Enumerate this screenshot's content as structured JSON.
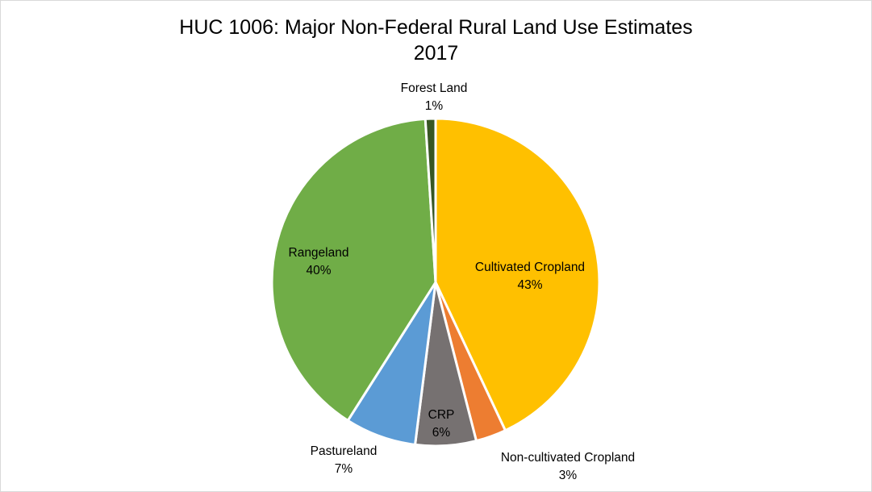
{
  "chart_data": {
    "type": "pie",
    "title": "HUC 1006: Major Non-Federal Rural Land Use Estimates",
    "subtitle": "2017",
    "slices": [
      {
        "name": "Cultivated Cropland",
        "value": 43,
        "label": "43%",
        "color": "#FFC000"
      },
      {
        "name": "Non-cultivated Cropland",
        "value": 3,
        "label": "3%",
        "color": "#ED7D31"
      },
      {
        "name": "CRP",
        "value": 6,
        "label": "6%",
        "color": "#767171"
      },
      {
        "name": "Pastureland",
        "value": 7,
        "label": "7%",
        "color": "#5B9BD5"
      },
      {
        "name": "Rangeland",
        "value": 40,
        "label": "40%",
        "color": "#70AD47"
      },
      {
        "name": "Forest Land",
        "value": 1,
        "label": "1%",
        "color": "#375623"
      }
    ],
    "legend": "none",
    "start": "12 o'clock, clockwise"
  }
}
